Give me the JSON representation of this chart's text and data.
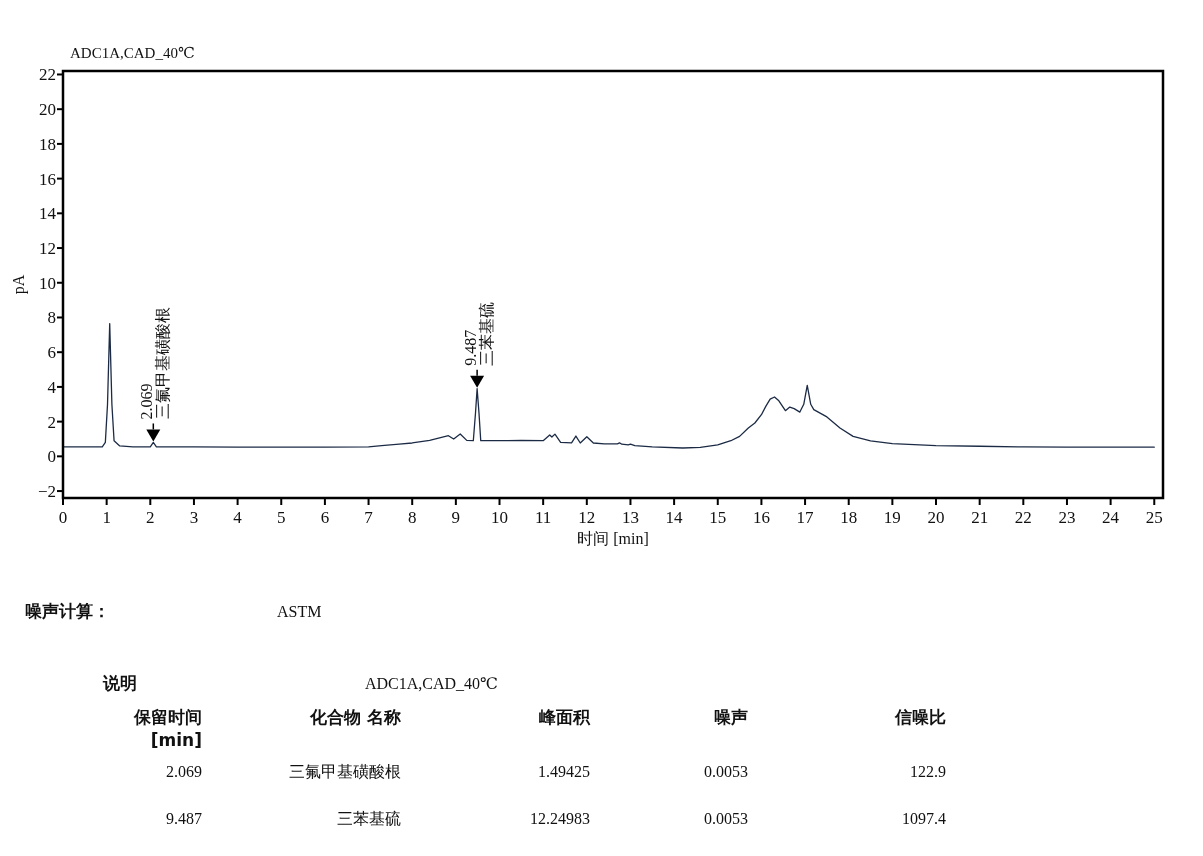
{
  "chart_data": {
    "type": "line",
    "title": "ADC1A,CAD_40℃",
    "xlabel": "时间 [min]",
    "ylabel": "pA",
    "xlim": [
      0,
      25.2
    ],
    "ylim": [
      -2.4,
      22.2
    ],
    "xticks": [
      0,
      1,
      2,
      3,
      4,
      5,
      6,
      7,
      8,
      9,
      10,
      11,
      12,
      13,
      14,
      15,
      16,
      17,
      18,
      19,
      20,
      21,
      22,
      23,
      24,
      25
    ],
    "yticks": [
      {
        "value": -2,
        "label": "−2"
      },
      0,
      2,
      4,
      6,
      8,
      10,
      12,
      14,
      16,
      18,
      20,
      22
    ],
    "x": [
      0,
      0.9,
      0.97,
      1.02,
      1.07,
      1.12,
      1.17,
      1.3,
      1.6,
      2.0,
      2.069,
      2.14,
      3,
      4,
      5,
      6,
      7,
      7.3,
      7.7,
      8.0,
      8.4,
      8.83,
      8.95,
      9.1,
      9.25,
      9.4,
      9.45,
      9.487,
      9.53,
      9.57,
      10,
      10.5,
      11.0,
      11.15,
      11.2,
      11.27,
      11.4,
      11.65,
      11.75,
      11.85,
      12.0,
      12.15,
      12.4,
      12.7,
      12.75,
      12.8,
      12.95,
      13.0,
      13.1,
      13.5,
      14.2,
      14.6,
      15.0,
      15.3,
      15.5,
      15.7,
      15.85,
      16.0,
      16.1,
      16.2,
      16.3,
      16.4,
      16.55,
      16.65,
      16.75,
      16.88,
      16.97,
      17.05,
      17.13,
      17.2,
      17.5,
      17.8,
      18.1,
      18.5,
      19,
      20,
      21,
      22,
      23,
      24,
      25
    ],
    "series": [
      {
        "color": "#1c2b45",
        "values": [
          0.55,
          0.55,
          0.8,
          3.0,
          7.65,
          3.0,
          0.9,
          0.6,
          0.55,
          0.55,
          0.8,
          0.55,
          0.54,
          0.53,
          0.53,
          0.53,
          0.55,
          0.62,
          0.7,
          0.77,
          0.92,
          1.19,
          1.0,
          1.29,
          0.92,
          0.9,
          2.5,
          3.9,
          2.5,
          0.9,
          0.9,
          0.92,
          0.9,
          1.23,
          1.11,
          1.28,
          0.81,
          0.78,
          1.17,
          0.77,
          1.13,
          0.77,
          0.72,
          0.72,
          0.78,
          0.7,
          0.66,
          0.7,
          0.62,
          0.55,
          0.48,
          0.52,
          0.66,
          0.9,
          1.15,
          1.63,
          1.92,
          2.4,
          2.88,
          3.3,
          3.42,
          3.2,
          2.63,
          2.84,
          2.75,
          2.55,
          3.0,
          4.09,
          3.0,
          2.69,
          2.27,
          1.63,
          1.15,
          0.89,
          0.73,
          0.62,
          0.58,
          0.54,
          0.53,
          0.53,
          0.53
        ]
      }
    ],
    "annotations": [
      {
        "text": "2.069\n三氟甲基磺酸根",
        "x": 2.069,
        "y": 0.8
      },
      {
        "text": "9.487\n三苯基硫",
        "x": 9.487,
        "y": 3.9
      },
      "噪声计算：",
      "ASTM",
      "说明",
      "ADC1A,CAD_40℃",
      "保留时间\n[min]",
      "化合物 名称",
      "峰面积",
      "噪声",
      "信噪比",
      "2.069",
      "三氟甲基磺酸根",
      "1.49425",
      "0.0053",
      "122.9",
      "9.487",
      "三苯基硫",
      "12.24983",
      "0.0053",
      "1097.4"
    ]
  }
}
